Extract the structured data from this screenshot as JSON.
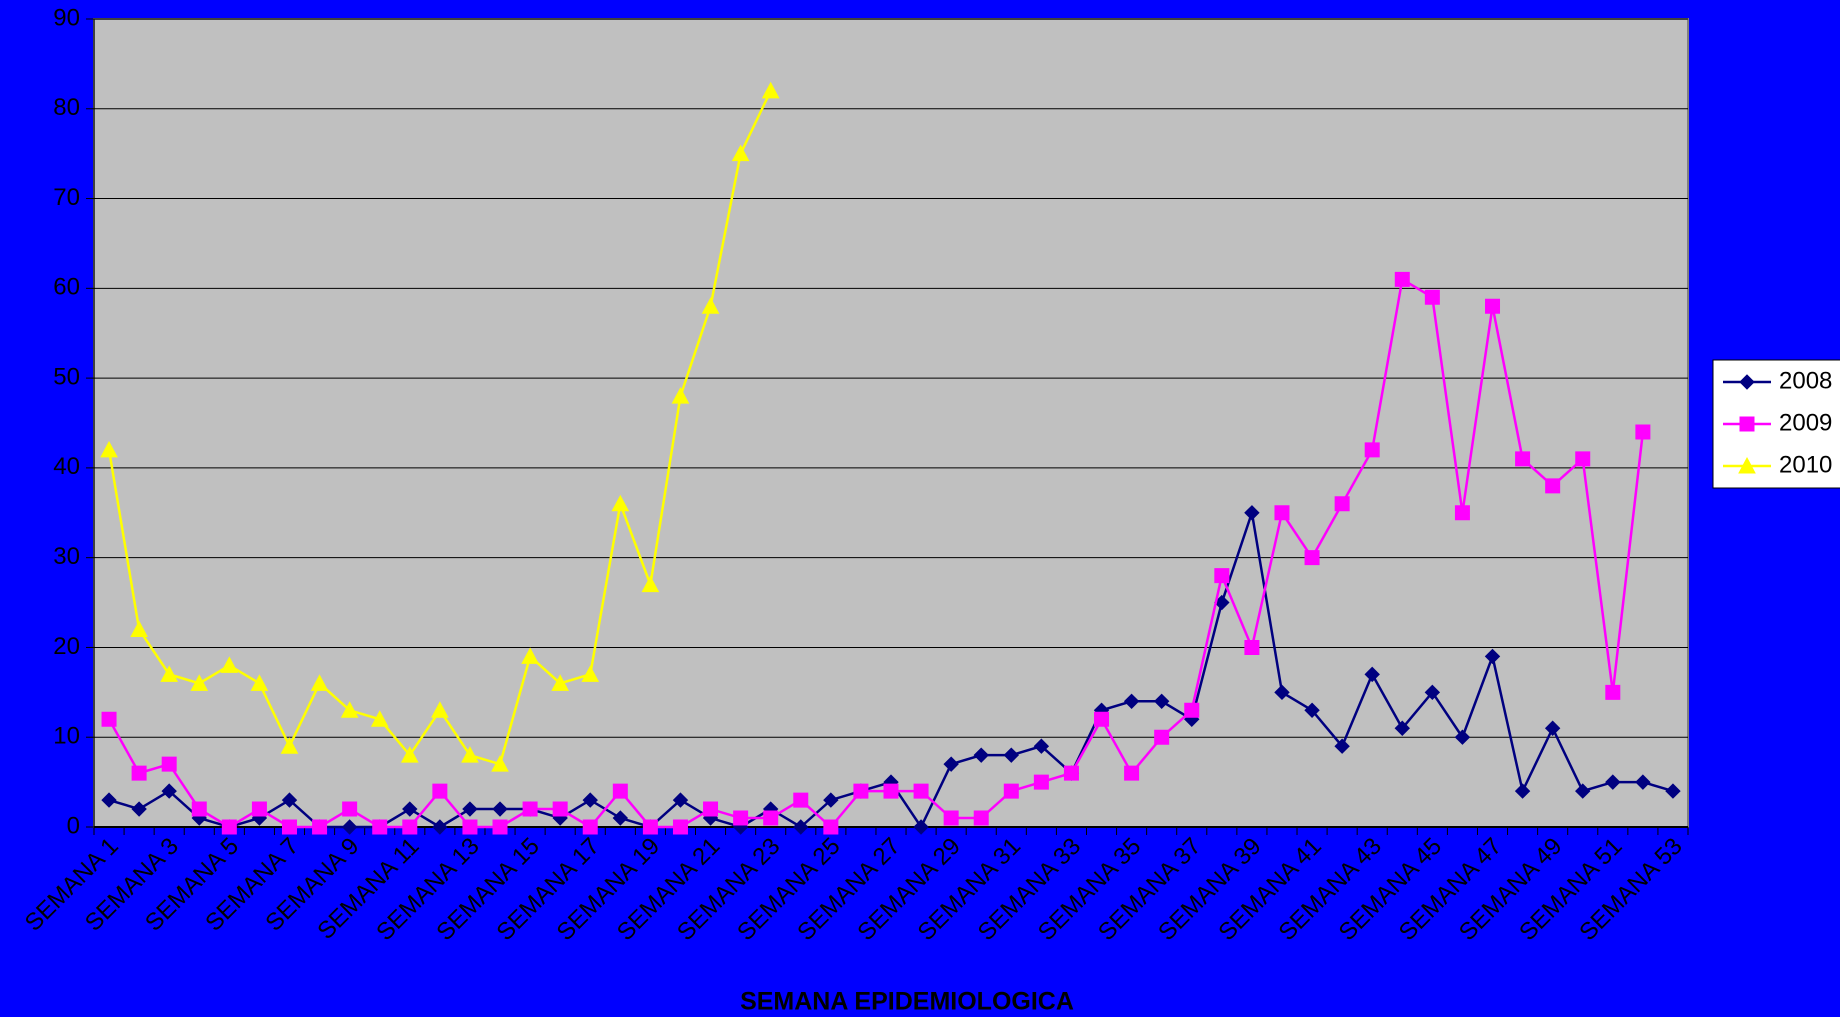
{
  "chart_data": {
    "type": "line",
    "x_label": "SEMANA EPIDEMIOLOGICA",
    "categories": [
      "SEMANA 1",
      null,
      "SEMANA 3",
      null,
      "SEMANA 5",
      null,
      "SEMANA 7",
      null,
      "SEMANA 9",
      null,
      "SEMANA 11",
      null,
      "SEMANA 13",
      null,
      "SEMANA 15",
      null,
      "SEMANA 17",
      null,
      "SEMANA 19",
      null,
      "SEMANA 21",
      null,
      "SEMANA 23",
      null,
      "SEMANA 25",
      null,
      "SEMANA 27",
      null,
      "SEMANA 29",
      null,
      "SEMANA 31",
      null,
      "SEMANA 33",
      null,
      "SEMANA 35",
      null,
      "SEMANA 37",
      null,
      "SEMANA 39",
      null,
      "SEMANA 41",
      null,
      "SEMANA 43",
      null,
      "SEMANA 45",
      null,
      "SEMANA 47",
      null,
      "SEMANA 49",
      null,
      "SEMANA 51",
      null,
      "SEMANA 53"
    ],
    "series": [
      {
        "name": "2008",
        "color": "#000080",
        "marker": "diamond",
        "values": [
          3,
          2,
          4,
          1,
          0,
          1,
          3,
          0,
          0,
          0,
          2,
          0,
          2,
          2,
          2,
          1,
          3,
          1,
          0,
          3,
          1,
          0,
          2,
          0,
          3,
          4,
          5,
          0,
          7,
          8,
          8,
          9,
          6,
          13,
          14,
          14,
          12,
          25,
          35,
          15,
          13,
          9,
          17,
          11,
          15,
          10,
          19,
          4,
          11,
          4,
          5,
          5,
          4
        ]
      },
      {
        "name": "2009",
        "color": "#ff00ff",
        "marker": "square",
        "values": [
          12,
          6,
          7,
          2,
          0,
          2,
          0,
          0,
          2,
          0,
          0,
          4,
          0,
          0,
          2,
          2,
          0,
          4,
          0,
          0,
          2,
          1,
          1,
          3,
          0,
          4,
          4,
          4,
          1,
          1,
          4,
          5,
          6,
          12,
          6,
          10,
          13,
          28,
          20,
          35,
          30,
          36,
          42,
          61,
          59,
          35,
          58,
          41,
          38,
          41,
          15,
          44,
          null
        ]
      },
      {
        "name": "2010",
        "color": "#ffff00",
        "marker": "triangle",
        "values": [
          42,
          22,
          17,
          16,
          18,
          16,
          9,
          16,
          13,
          12,
          8,
          13,
          8,
          7,
          19,
          16,
          17,
          36,
          27,
          48,
          58,
          75,
          82,
          null,
          null,
          null,
          null,
          null,
          null,
          null,
          null,
          null,
          null,
          null,
          null,
          null,
          null,
          null,
          null,
          null,
          null,
          null,
          null,
          null,
          null,
          null,
          null,
          null,
          null,
          null,
          null,
          null,
          null
        ]
      }
    ],
    "ylim": [
      0,
      90
    ],
    "yticks": [
      0,
      10,
      20,
      30,
      40,
      50,
      60,
      70,
      80,
      90
    ],
    "grid": true,
    "legend": "right",
    "plot_color": "#c0c0c0"
  }
}
